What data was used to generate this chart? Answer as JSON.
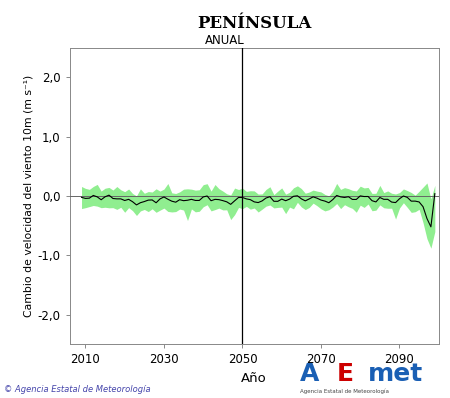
{
  "title": "PENÍNSULA",
  "subtitle": "ANUAL",
  "xlabel": "Año",
  "ylabel": "Cambio de velocidad del viento 10m (m s⁻¹)",
  "xmin": 2006,
  "xmax": 2100,
  "ymin": -2.5,
  "ymax": 2.5,
  "yticks": [
    -2.0,
    -1.0,
    0.0,
    1.0,
    2.0
  ],
  "ytick_labels": [
    "-2,0",
    "-1,0",
    "0,0",
    "1,0",
    "2,0"
  ],
  "xticks": [
    2010,
    2030,
    2050,
    2070,
    2090
  ],
  "vline_x": 2050,
  "hline_y": 0.0,
  "band_color": "#90EE90",
  "line_color": "#000000",
  "zero_line_color": "#666666",
  "vline_color": "#000000",
  "bg_color": "#ffffff",
  "copyright_text": "© Agencia Estatal de Meteorología",
  "copyright_color": "#4444aa",
  "seed": 42,
  "n_points": 91,
  "x_start": 2009
}
